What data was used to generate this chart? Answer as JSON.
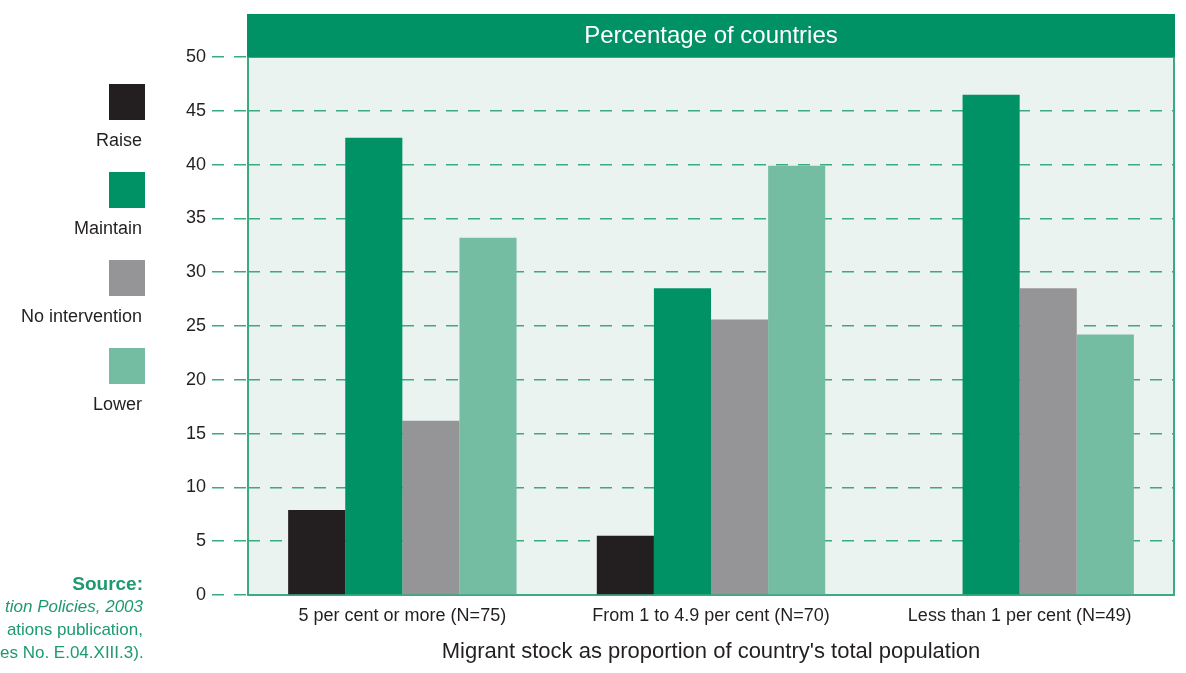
{
  "chart_data": {
    "type": "bar",
    "title": "Percentage of countries",
    "xlabel": "Migrant stock as proportion of country's total population",
    "categories": [
      "5 per cent or more (N=75)",
      "From 1 to 4.9 per cent (N=70)",
      "Less than 1 per cent (N=49)"
    ],
    "series": [
      {
        "name": "Raise",
        "color": "#231f20",
        "values": [
          7.9,
          5.5,
          0
        ]
      },
      {
        "name": "Maintain",
        "color": "#009264",
        "values": [
          42.5,
          28.5,
          46.5
        ]
      },
      {
        "name": "No intervention",
        "color": "#959598",
        "values": [
          16.2,
          25.6,
          28.5
        ]
      },
      {
        "name": "Lower",
        "color": "#74bda3",
        "values": [
          33.2,
          39.9,
          24.2
        ]
      }
    ],
    "ylim": [
      0,
      50
    ],
    "yticks": [
      0,
      5,
      10,
      15,
      20,
      25,
      30,
      35,
      40,
      45,
      50
    ],
    "grid": "y",
    "legend": "left",
    "annotations": [
      "Source:",
      "tion Policies, 2003",
      "ations publication,",
      "es No. E.04.XIII.3)."
    ]
  }
}
